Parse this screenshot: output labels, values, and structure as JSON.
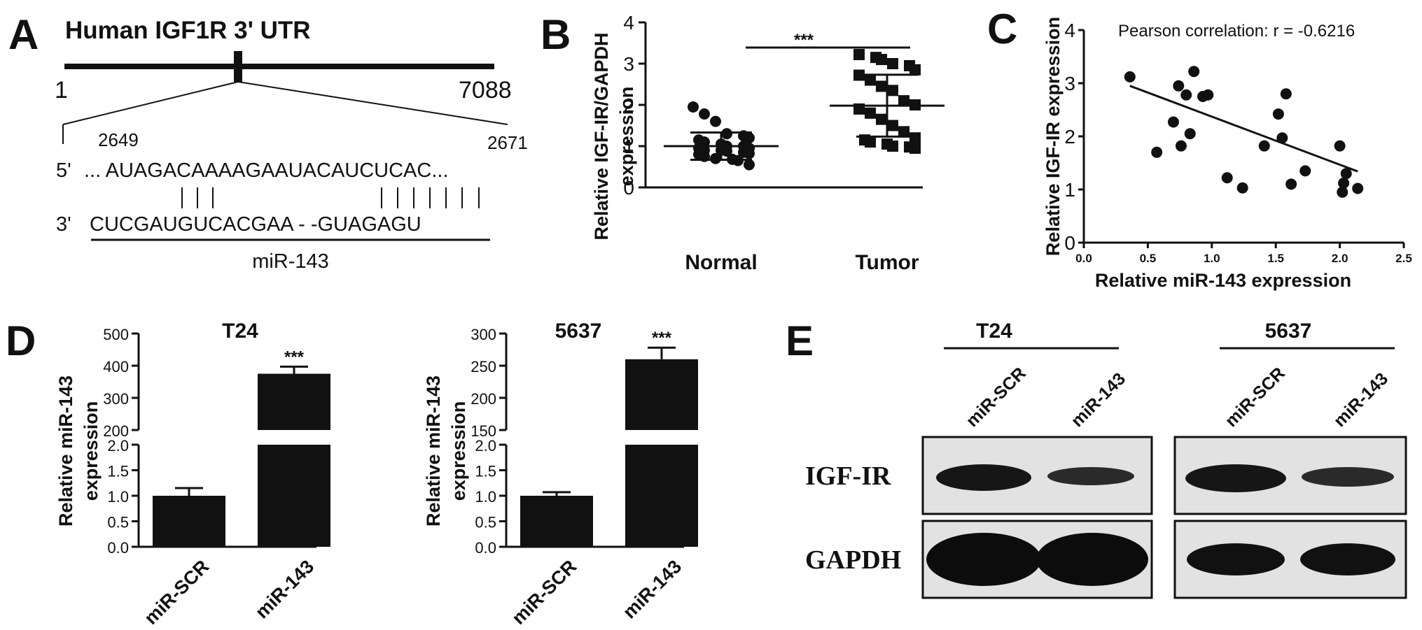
{
  "panels": {
    "a": "A",
    "b": "B",
    "c": "C",
    "d": "D",
    "e": "E"
  },
  "panel_a": {
    "title": "Human IGF1R  3' UTR",
    "start": "1",
    "end": "7088",
    "site_start": "2649",
    "site_end": "2671",
    "five_prime": "5'",
    "three_prime": "3'",
    "utr_seq": "... AUAGACAAAAGAAUACAUCUCAC...",
    "pairing": "| | |                       | | | | | | |",
    "mir_seq": "CUCGAUGUCACGAA - -GUAGAGU",
    "mir_name": "miR-143"
  },
  "chart_data": [
    {
      "id": "B",
      "type": "scatter",
      "title": "",
      "ylabel_line1": "Relative IGF-IR/GAPDH",
      "ylabel_line2": "expression",
      "categories": [
        "Normal",
        "Tumor"
      ],
      "ylim": [
        0,
        4
      ],
      "yticks": [
        "0",
        "1",
        "2",
        "3",
        "4"
      ],
      "significance": "***",
      "series": [
        {
          "category": "Normal",
          "mean": 1.0,
          "sd": 0.33,
          "values": [
            1.95,
            1.78,
            1.6,
            1.3,
            1.25,
            1.2,
            1.15,
            1.1,
            1.05,
            1.0,
            1.0,
            0.95,
            0.95,
            0.9,
            0.9,
            0.88,
            0.85,
            0.82,
            0.8,
            0.75,
            0.7,
            0.68,
            0.65,
            0.55
          ]
        },
        {
          "category": "Tumor",
          "mean": 1.98,
          "sd": 0.75,
          "values": [
            3.22,
            3.15,
            3.1,
            3.0,
            2.95,
            2.85,
            2.72,
            2.6,
            2.45,
            2.35,
            2.1,
            2.0,
            1.9,
            1.8,
            1.65,
            1.5,
            1.35,
            1.2,
            1.15,
            1.1,
            1.05,
            1.0,
            0.98,
            0.95
          ]
        }
      ]
    },
    {
      "id": "C",
      "type": "scatter",
      "title": "Pearson correlation: r = -0.6216",
      "xlabel": "Relative miR-143  expression",
      "ylabel": "Relative IGF-IR expression",
      "xlim": [
        0,
        2.5
      ],
      "ylim": [
        0,
        4
      ],
      "xticks": [
        "0.0",
        "0.5",
        "1.0",
        "1.5",
        "2.0",
        "2.5"
      ],
      "yticks": [
        "0",
        "1",
        "2",
        "3",
        "4"
      ],
      "points": [
        [
          0.36,
          3.12
        ],
        [
          0.57,
          1.7
        ],
        [
          0.7,
          2.27
        ],
        [
          0.74,
          2.95
        ],
        [
          0.76,
          1.82
        ],
        [
          0.8,
          2.78
        ],
        [
          0.83,
          2.05
        ],
        [
          0.86,
          3.22
        ],
        [
          0.93,
          2.75
        ],
        [
          0.97,
          2.78
        ],
        [
          1.12,
          1.22
        ],
        [
          1.24,
          1.03
        ],
        [
          1.41,
          1.82
        ],
        [
          1.52,
          2.42
        ],
        [
          1.55,
          1.97
        ],
        [
          1.58,
          2.8
        ],
        [
          1.62,
          1.1
        ],
        [
          1.73,
          1.35
        ],
        [
          2.0,
          1.82
        ],
        [
          2.02,
          0.95
        ],
        [
          2.03,
          1.12
        ],
        [
          2.05,
          1.3
        ],
        [
          2.14,
          1.02
        ]
      ],
      "fit": [
        [
          0.36,
          2.95
        ],
        [
          2.14,
          1.34
        ]
      ]
    },
    {
      "id": "D1",
      "type": "bar",
      "title": "T24",
      "ylabel_line1": "Relative miR-143",
      "ylabel_line2": "expression",
      "categories": [
        "miR-SCR",
        "miR-143"
      ],
      "values": [
        1.0,
        375
      ],
      "errors": [
        0.15,
        22
      ],
      "significance": "***",
      "axis_break": true,
      "ylim_lower": [
        0,
        2.0
      ],
      "ylim_upper": [
        200,
        500
      ],
      "yticks_lower": [
        "0.0",
        "0.5",
        "1.0",
        "1.5",
        "2.0"
      ],
      "yticks_upper": [
        "200",
        "300",
        "400",
        "500"
      ]
    },
    {
      "id": "D2",
      "type": "bar",
      "title": "5637",
      "ylabel_line1": "Relative miR-143",
      "ylabel_line2": "expression",
      "categories": [
        "miR-SCR",
        "miR-143"
      ],
      "values": [
        1.0,
        260
      ],
      "errors": [
        0.07,
        18
      ],
      "significance": "***",
      "axis_break": true,
      "ylim_lower": [
        0,
        2.0
      ],
      "ylim_upper": [
        150,
        300
      ],
      "yticks_lower": [
        "0.0",
        "0.5",
        "1.0",
        "1.5",
        "2.0"
      ],
      "yticks_upper": [
        "150",
        "200",
        "250",
        "300"
      ]
    }
  ],
  "panel_e": {
    "groups": [
      "T24",
      "5637"
    ],
    "lanes": [
      "miR-SCR",
      "miR-143"
    ],
    "rows": [
      "IGF-IR",
      "GAPDH"
    ],
    "band_intensity": {
      "T24": {
        "IGF-IR": [
          0.9,
          0.55
        ],
        "GAPDH": [
          1.0,
          1.0
        ]
      },
      "5637": {
        "IGF-IR": [
          0.9,
          0.55
        ],
        "GAPDH": [
          0.85,
          0.85
        ]
      }
    }
  }
}
